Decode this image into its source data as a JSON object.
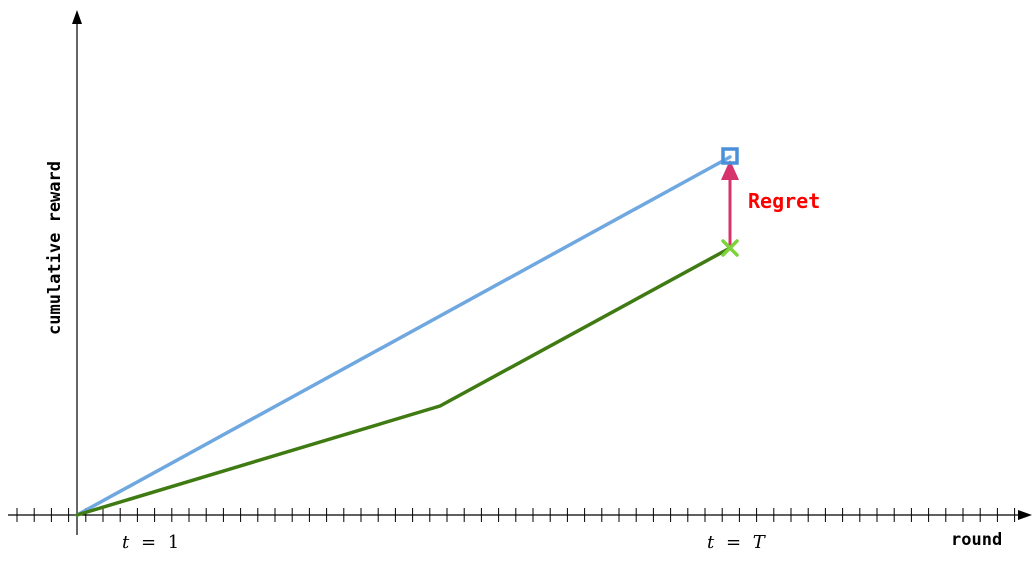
{
  "diagram": {
    "y_axis_label": "cumulative reward",
    "x_axis_label": "round",
    "tick_label_start": {
      "var": "t",
      "op": "=",
      "val": "1"
    },
    "tick_label_end": {
      "var": "t",
      "op": "=",
      "val": "T"
    },
    "regret_label": "Regret",
    "colors": {
      "optimal_line": "#6fa8e0",
      "algorithm_line": "#3f7a12",
      "square_marker": "#4a90d9",
      "x_marker": "#7dd33b",
      "regret_arrow": "#d6336c",
      "regret_text": "#ff0000"
    },
    "markers": {
      "end_of_optimal": "square-marker",
      "end_of_algorithm": "x-marker"
    }
  },
  "chart_data": {
    "type": "line",
    "xlabel": "round",
    "ylabel": "cumulative reward",
    "series": [
      {
        "points": [
          [
            0,
            0
          ],
          [
            1,
            1
          ]
        ]
      },
      {
        "points": [
          [
            0,
            0
          ],
          [
            0.555,
            0.3
          ],
          [
            1,
            0.745
          ]
        ]
      }
    ],
    "annotations": [
      "Regret"
    ]
  }
}
